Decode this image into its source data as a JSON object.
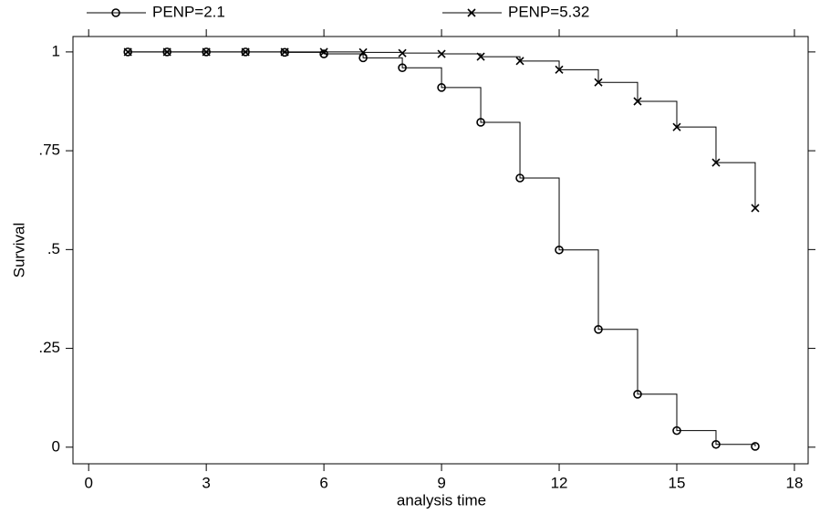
{
  "chart_data": {
    "type": "step",
    "x_label": "analysis time",
    "y_label": "Survival",
    "x": [
      1,
      2,
      3,
      4,
      5,
      6,
      7,
      8,
      9,
      10,
      11,
      12,
      13,
      14,
      15,
      16,
      17
    ],
    "series": [
      {
        "name": "PENP=2.1",
        "marker": "circle",
        "color": "#000000",
        "values": [
          1,
          1,
          1,
          1,
          0.999,
          0.995,
          0.985,
          0.96,
          0.91,
          0.822,
          0.681,
          0.499,
          0.298,
          0.134,
          0.042,
          0.007,
          0.002
        ]
      },
      {
        "name": "PENP=5.32",
        "marker": "cross",
        "color": "#000000",
        "values": [
          1,
          1,
          1,
          1,
          1,
          1,
          0.999,
          0.997,
          0.995,
          0.988,
          0.977,
          0.955,
          0.923,
          0.875,
          0.81,
          0.72,
          0.605
        ]
      }
    ],
    "xlim": [
      -0.4,
      18.35
    ],
    "ylim": [
      -0.042,
      1.039
    ],
    "xticks": [
      0,
      3,
      6,
      9,
      12,
      15,
      18
    ],
    "yticks": [
      0,
      {
        "value": 0.25,
        "label": ".25"
      },
      {
        "value": 0.5,
        "label": ".5"
      },
      {
        "value": 0.75,
        "label": ".75"
      },
      1
    ]
  }
}
